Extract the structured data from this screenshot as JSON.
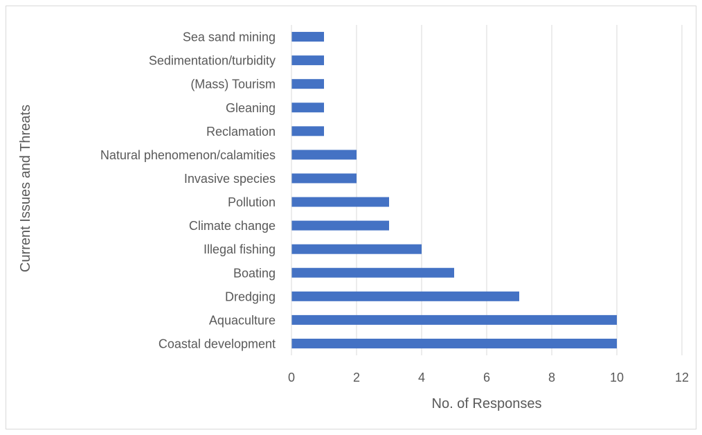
{
  "chart_data": {
    "type": "bar",
    "orientation": "horizontal",
    "title": "",
    "xlabel": "No. of Responses",
    "ylabel": "Current Issues and Threats",
    "xlim": [
      0,
      12
    ],
    "xticks": [
      "0",
      "2",
      "4",
      "6",
      "8",
      "10",
      "12"
    ],
    "grid": "vertical",
    "bar_color": "#4472c4",
    "categories": [
      "Coastal development",
      "Aquaculture",
      "Dredging",
      "Boating ",
      "Illegal fishing ",
      "Climate change",
      "Pollution",
      "Invasive species",
      "Natural phenomenon/calamities",
      "Reclamation",
      "Gleaning",
      "(Mass) Tourism",
      "Sedimentation/turbidity",
      "Sea sand mining"
    ],
    "values": [
      10,
      10,
      7,
      5,
      4,
      3,
      3,
      2,
      2,
      1,
      1,
      1,
      1,
      1
    ]
  }
}
